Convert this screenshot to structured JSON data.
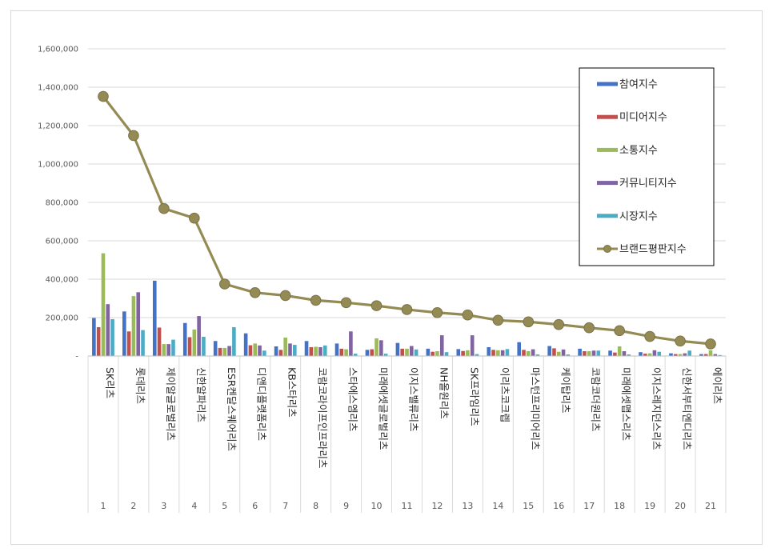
{
  "chart_data": {
    "type": "bar",
    "title": "",
    "xlabel": "",
    "ylabel": "",
    "ylim": [
      0,
      1600000
    ],
    "yticks": [
      0,
      200000,
      400000,
      600000,
      800000,
      1000000,
      1200000,
      1400000,
      1600000
    ],
    "ytick_labels": [
      "-",
      "200,000",
      "400,000",
      "600,000",
      "800,000",
      "1,000,000",
      "1,200,000",
      "1,400,000",
      "1,600,000"
    ],
    "grid": true,
    "legend_position": "top-right",
    "categories": [
      "1",
      "2",
      "3",
      "4",
      "5",
      "6",
      "7",
      "8",
      "9",
      "10",
      "11",
      "12",
      "13",
      "14",
      "15",
      "16",
      "17",
      "18",
      "19",
      "20",
      "21"
    ],
    "category_names": [
      "SK리츠",
      "롯데리츠",
      "제이알글로벌리츠",
      "신한알파리츠",
      "ESR켄달스퀘어리츠",
      "디앤디플랫폼리츠",
      "KB스타리츠",
      "코람코라이프인프라리츠",
      "스타에스엠리츠",
      "미래에셋글로벌리츠",
      "이지스밸류리츠",
      "NH올원리츠",
      "SK프라임리츠",
      "이리츠코크렙",
      "마스턴프리미어리츠",
      "케이탑리츠",
      "코람코더원리츠",
      "미래에셋맵스리츠",
      "이지스레지던스리츠",
      "신한서부티엔디리츠",
      "에이리츠"
    ],
    "series": [
      {
        "name": "참여지수",
        "color": "#4472c4",
        "values": [
          198000,
          232000,
          392000,
          172000,
          78000,
          118000,
          50000,
          78000,
          65000,
          32000,
          68000,
          38000,
          36000,
          46000,
          72000,
          52000,
          38000,
          28000,
          20000,
          14000,
          10000
        ]
      },
      {
        "name": "미디어지수",
        "color": "#c0504d",
        "values": [
          150000,
          128000,
          148000,
          98000,
          42000,
          56000,
          32000,
          46000,
          38000,
          35000,
          38000,
          22000,
          26000,
          32000,
          32000,
          40000,
          25000,
          18000,
          12000,
          10000,
          10000
        ]
      },
      {
        "name": "소통지수",
        "color": "#9bbb59",
        "values": [
          535000,
          312000,
          62000,
          138000,
          42000,
          65000,
          96000,
          48000,
          35000,
          92000,
          38000,
          25000,
          30000,
          30000,
          25000,
          22000,
          25000,
          50000,
          14000,
          10000,
          30000
        ]
      },
      {
        "name": "커뮤니티지수",
        "color": "#8064a2",
        "values": [
          270000,
          332000,
          62000,
          208000,
          52000,
          55000,
          65000,
          46000,
          128000,
          82000,
          52000,
          108000,
          108000,
          30000,
          35000,
          34000,
          28000,
          25000,
          30000,
          14000,
          10000
        ]
      },
      {
        "name": "시장지수",
        "color": "#4bacc6",
        "values": [
          192000,
          135000,
          85000,
          100000,
          150000,
          28000,
          58000,
          55000,
          12000,
          12000,
          34000,
          20000,
          10000,
          36000,
          8000,
          8000,
          28000,
          8000,
          22000,
          28000,
          5000
        ]
      },
      {
        "name": "브랜드평판지수",
        "color": "#948a54",
        "type": "line",
        "values": [
          1352000,
          1148000,
          768000,
          718000,
          375000,
          330000,
          315000,
          290000,
          278000,
          262000,
          242000,
          226000,
          214000,
          186000,
          178000,
          164000,
          147000,
          132000,
          102000,
          78000,
          63000
        ]
      }
    ]
  }
}
